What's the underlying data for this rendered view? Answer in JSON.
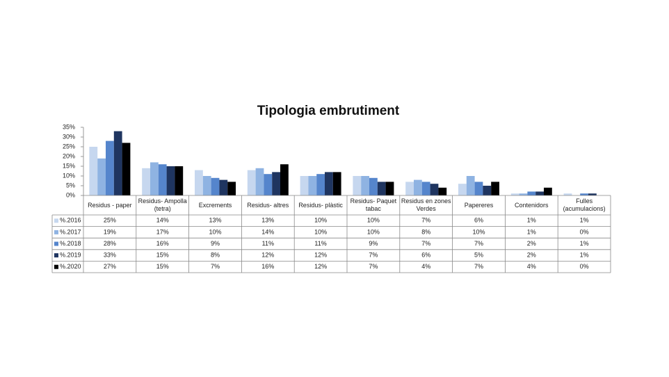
{
  "chart_data": {
    "type": "bar",
    "title": "Tipologia embrutiment",
    "categories": [
      "Residus - paper",
      "Residus- Ampolla (tetra)",
      "Excrements",
      "Residus- altres",
      "Residus- plàstic",
      "Residus- Paquet tabac",
      "Residus en zones Verdes",
      "Papereres",
      "Contenidors",
      "Fulles (acumulacions)"
    ],
    "series": [
      {
        "name": "%.2016",
        "color": "#c6d7ef",
        "values": [
          25,
          14,
          13,
          13,
          10,
          10,
          7,
          6,
          1,
          1
        ],
        "value_labels": [
          "25%",
          "14%",
          "13%",
          "13%",
          "10%",
          "10%",
          "7%",
          "6%",
          "1%",
          "1%"
        ]
      },
      {
        "name": "%.2017",
        "color": "#8fb3e2",
        "values": [
          19,
          17,
          10,
          14,
          10,
          10,
          8,
          10,
          1,
          0
        ],
        "value_labels": [
          "19%",
          "17%",
          "10%",
          "14%",
          "10%",
          "10%",
          "8%",
          "10%",
          "1%",
          "0%"
        ]
      },
      {
        "name": "%.2018",
        "color": "#5585cc",
        "values": [
          28,
          16,
          9,
          11,
          11,
          9,
          7,
          7,
          2,
          1
        ],
        "value_labels": [
          "28%",
          "16%",
          "9%",
          "11%",
          "11%",
          "9%",
          "7%",
          "7%",
          "2%",
          "1%"
        ]
      },
      {
        "name": "%.2019",
        "color": "#1f3560",
        "values": [
          33,
          15,
          8,
          12,
          12,
          7,
          6,
          5,
          2,
          1
        ],
        "value_labels": [
          "33%",
          "15%",
          "8%",
          "12%",
          "12%",
          "7%",
          "6%",
          "5%",
          "2%",
          "1%"
        ]
      },
      {
        "name": "%.2020",
        "color": "#000000",
        "values": [
          27,
          15,
          7,
          16,
          12,
          7,
          4,
          7,
          4,
          0
        ],
        "value_labels": [
          "27%",
          "15%",
          "7%",
          "16%",
          "12%",
          "7%",
          "4%",
          "7%",
          "4%",
          "0%"
        ]
      }
    ],
    "ylim": [
      0,
      35
    ],
    "yticks": [
      {
        "value": 0,
        "label": "0%"
      },
      {
        "value": 5,
        "label": "5%"
      },
      {
        "value": 10,
        "label": "10%"
      },
      {
        "value": 15,
        "label": "15%"
      },
      {
        "value": 20,
        "label": "20%"
      },
      {
        "value": 25,
        "label": "25%"
      },
      {
        "value": 30,
        "label": "30%"
      },
      {
        "value": 35,
        "label": "35%"
      }
    ]
  }
}
